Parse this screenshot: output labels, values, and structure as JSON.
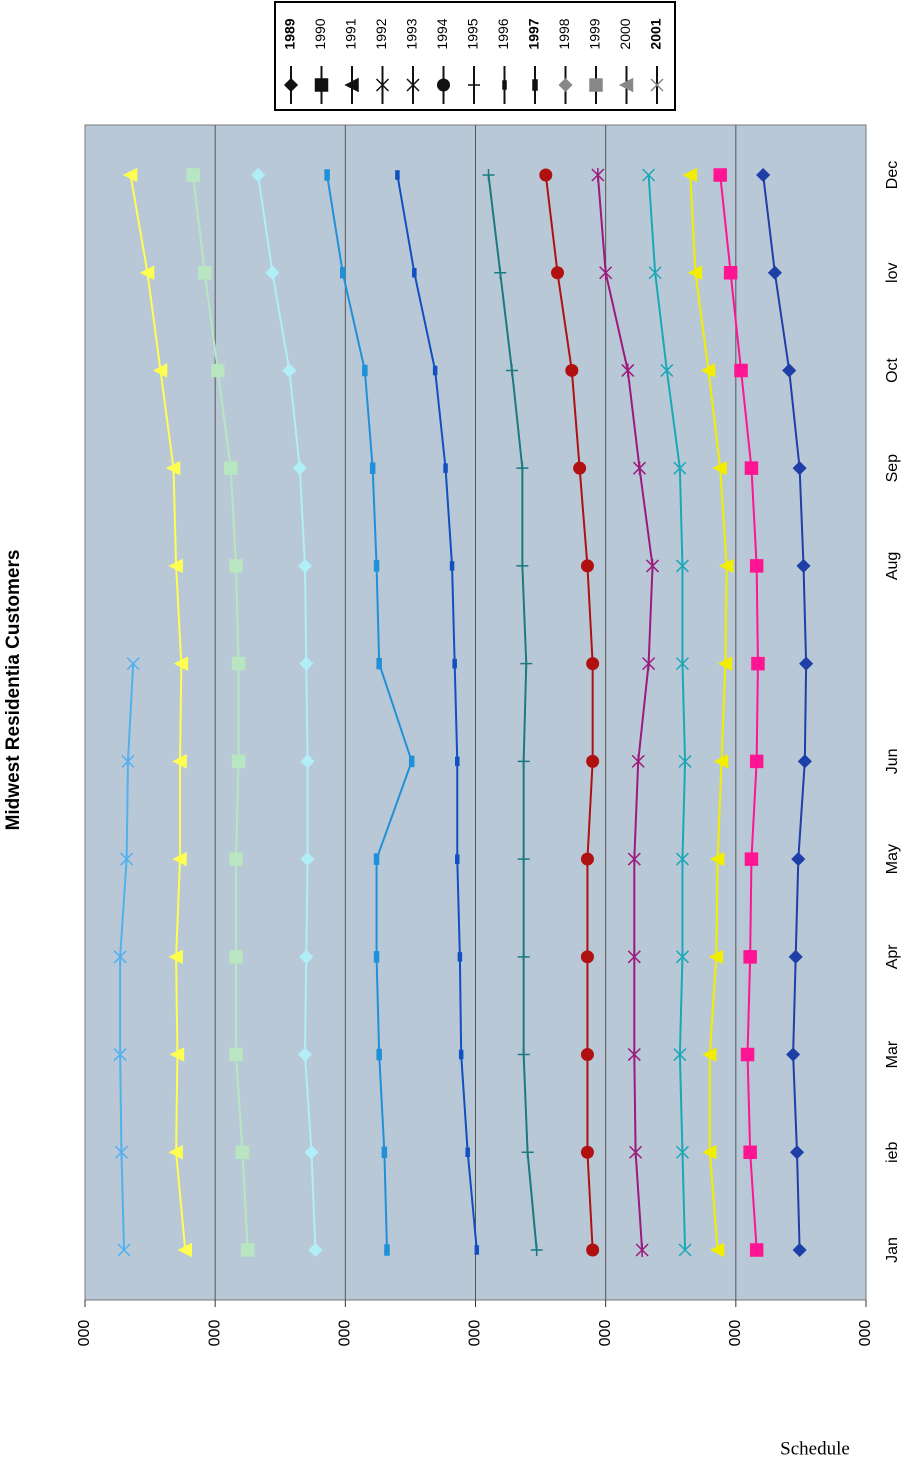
{
  "chart_data": {
    "type": "line",
    "title": "Midwest Residentia  Customers",
    "footer": "Schedule",
    "categories": [
      "Jan",
      "ieb",
      "Mar",
      "Apr",
      "May",
      "Jun",
      null,
      "Aug",
      "Sep",
      "Oct",
      "lov",
      "Dec"
    ],
    "ylim": [
      0,
      6
    ],
    "yticks": [
      {
        "value": 0,
        "label": "000"
      },
      {
        "value": 1,
        "label": "000"
      },
      {
        "value": 2,
        "label": "000"
      },
      {
        "value": 3,
        "label": "000"
      },
      {
        "value": 4,
        "label": "000"
      },
      {
        "value": 5,
        "label": "000"
      },
      {
        "value": 6,
        "label": "000"
      }
    ],
    "grid": true,
    "legend": "top",
    "series": [
      {
        "name": "1989",
        "bold": true,
        "marker": "diamond",
        "color": "#1f3fa8",
        "values": [
          0.51,
          0.53,
          0.56,
          0.54,
          0.52,
          0.47,
          0.46,
          0.48,
          0.51,
          0.59,
          0.7,
          0.79
        ]
      },
      {
        "name": "1990",
        "bold": false,
        "marker": "square",
        "color": "#ff1493",
        "values": [
          0.84,
          0.89,
          0.91,
          0.89,
          0.88,
          0.84,
          0.83,
          0.84,
          0.88,
          0.96,
          1.04,
          1.12
        ]
      },
      {
        "name": "1991",
        "bold": false,
        "marker": "triangle",
        "color": "#f2ee00",
        "values": [
          1.14,
          1.2,
          1.2,
          1.15,
          1.14,
          1.11,
          1.08,
          1.07,
          1.12,
          1.21,
          1.31,
          1.35
        ]
      },
      {
        "name": "1992",
        "bold": false,
        "marker": "x",
        "color": "#1aa8b8",
        "values": [
          1.39,
          1.41,
          1.43,
          1.41,
          1.41,
          1.39,
          1.41,
          1.41,
          1.43,
          1.53,
          1.62,
          1.67
        ]
      },
      {
        "name": "1993",
        "bold": false,
        "marker": "star",
        "color": "#9b1a7e",
        "values": [
          1.72,
          1.77,
          1.78,
          1.78,
          1.78,
          1.75,
          1.67,
          1.64,
          1.74,
          1.83,
          2.0,
          2.06
        ]
      },
      {
        "name": "1994",
        "bold": false,
        "marker": "circle",
        "color": "#b01010",
        "values": [
          2.1,
          2.14,
          2.14,
          2.14,
          2.14,
          2.1,
          2.1,
          2.14,
          2.2,
          2.26,
          2.37,
          2.46
        ]
      },
      {
        "name": "1995",
        "bold": false,
        "marker": "plus",
        "color": "#1a7a80",
        "values": [
          2.53,
          2.6,
          2.63,
          2.63,
          2.63,
          2.63,
          2.61,
          2.64,
          2.64,
          2.72,
          2.81,
          2.9
        ]
      },
      {
        "name": "1996",
        "bold": false,
        "marker": "dash",
        "color": "#1050c0",
        "values": [
          2.99,
          3.06,
          3.11,
          3.12,
          3.14,
          3.14,
          3.16,
          3.18,
          3.23,
          3.31,
          3.47,
          3.6
        ]
      },
      {
        "name": "1997",
        "bold": true,
        "marker": "bar",
        "color": "#2090d8",
        "values": [
          3.68,
          3.7,
          3.74,
          3.76,
          3.76,
          3.49,
          3.74,
          3.76,
          3.79,
          3.85,
          4.02,
          4.14
        ]
      },
      {
        "name": "1998",
        "bold": false,
        "marker": "diamond",
        "color": "#b0eef8",
        "values": [
          4.23,
          4.26,
          4.31,
          4.3,
          4.29,
          4.29,
          4.3,
          4.31,
          4.35,
          4.43,
          4.56,
          4.67
        ]
      },
      {
        "name": "1999",
        "bold": false,
        "marker": "square",
        "color": "#b8e6c0",
        "values": [
          4.75,
          4.79,
          4.84,
          4.84,
          4.84,
          4.82,
          4.82,
          4.84,
          4.88,
          4.98,
          5.08,
          5.17
        ]
      },
      {
        "name": "2000",
        "bold": false,
        "marker": "triangle",
        "color": "#ffff50",
        "values": [
          5.23,
          5.3,
          5.29,
          5.3,
          5.27,
          5.27,
          5.26,
          5.3,
          5.32,
          5.42,
          5.52,
          5.65
        ]
      },
      {
        "name": "2001",
        "bold": true,
        "marker": "x",
        "color": "#50b0f0",
        "values": [
          5.7,
          5.72,
          5.73,
          5.73,
          5.68,
          5.67,
          5.63,
          null,
          null,
          null,
          null,
          null
        ]
      }
    ]
  }
}
